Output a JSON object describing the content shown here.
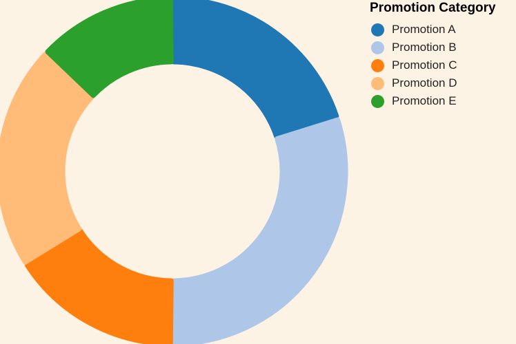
{
  "chart_data": {
    "type": "pie",
    "variant": "donut",
    "legend_title": "Promotion Category",
    "legend_position": "top-right",
    "categories": [
      "Promotion A",
      "Promotion B",
      "Promotion C",
      "Promotion D",
      "Promotion E"
    ],
    "values": [
      20,
      30,
      16,
      21,
      13
    ],
    "colors": [
      "#1f77b4",
      "#aec7e8",
      "#ff7f0e",
      "#ffbb78",
      "#2ca02c"
    ]
  }
}
